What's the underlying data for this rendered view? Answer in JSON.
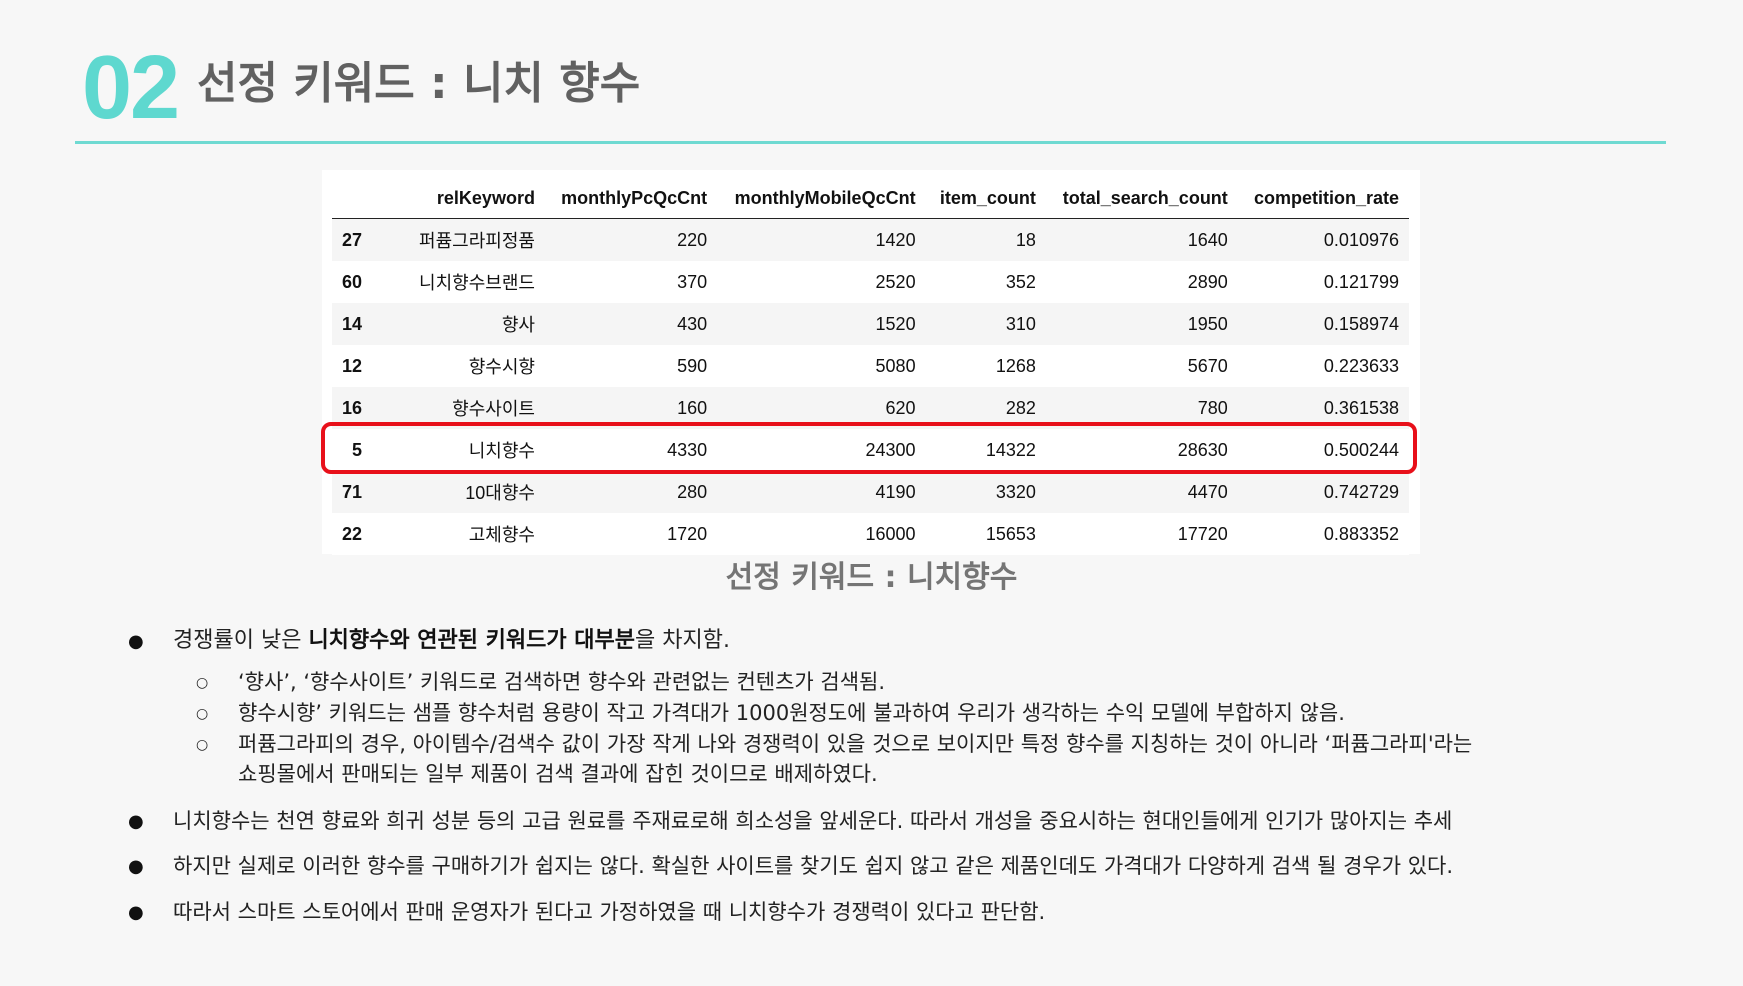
{
  "header": {
    "number": "02",
    "title": "선정 키워드 : 니치 향수"
  },
  "table": {
    "columns": [
      "",
      "relKeyword",
      "monthlyPcQcCnt",
      "monthlyMobileQcCnt",
      "item_count",
      "total_search_count",
      "competition_rate"
    ],
    "rows": [
      [
        "27",
        "퍼퓸그라피정품",
        "220",
        "1420",
        "18",
        "1640",
        "0.010976"
      ],
      [
        "60",
        "니치향수브랜드",
        "370",
        "2520",
        "352",
        "2890",
        "0.121799"
      ],
      [
        "14",
        "향사",
        "430",
        "1520",
        "310",
        "1950",
        "0.158974"
      ],
      [
        "12",
        "향수시향",
        "590",
        "5080",
        "1268",
        "5670",
        "0.223633"
      ],
      [
        "16",
        "향수사이트",
        "160",
        "620",
        "282",
        "780",
        "0.361538"
      ],
      [
        "5",
        "니치향수",
        "4330",
        "24300",
        "14322",
        "28630",
        "0.500244"
      ],
      [
        "71",
        "10대향수",
        "280",
        "4190",
        "3320",
        "4470",
        "0.742729"
      ],
      [
        "22",
        "고체향수",
        "1720",
        "16000",
        "15653",
        "17720",
        "0.883352"
      ]
    ],
    "highlight_color": "#e8101a"
  },
  "caption": "선정 키워드 : 니치향수",
  "bullets": {
    "b1_pre": "경쟁률이 낮은 ",
    "b1_bold": "니치향수와 연관된 키워드가 대부분",
    "b1_post": "을 차지함.",
    "s1": "‘향사’, ‘향수사이트’ 키워드로 검색하면 향수와 관련없는 컨텐츠가 검색됨.",
    "s2": "향수시향’ 키워드는 샘플 향수처럼 용량이 작고 가격대가 1000원정도에 불과하여 우리가 생각하는 수익 모델에 부합하지 않음.",
    "s3a": "퍼퓸그라피의 경우, 아이템수/검색수 값이 가장 작게 나와 경쟁력이 있을 것으로 보이지만 특정 향수를 지칭하는 것이 아니라 ‘퍼퓸그라피'라는",
    "s3b": "쇼핑몰에서 판매되는 일부 제품이 검색 결과에 잡힌 것이므로 배제하였다.",
    "b2": "니치향수는 천연 향료와 희귀 성분 등의 고급 원료를 주재료로해 희소성을 앞세운다. 따라서 개성을 중요시하는 현대인들에게 인기가 많아지는 추세",
    "b3": "하지만 실제로 이러한 향수를 구매하기가 쉽지는 않다. 확실한 사이트를 찾기도 쉽지 않고 같은 제품인데도 가격대가 다양하게 검색 될 경우가 있다.",
    "b4": "따라서 스마트 스토어에서 판매 운영자가 된다고 가정하였을 때 니치향수가 경쟁력이 있다고 판단함."
  },
  "colors": {
    "accent": "#5ed8cf",
    "rule": "#6fdad2",
    "title_text": "#616161",
    "caption_text": "#757575"
  }
}
